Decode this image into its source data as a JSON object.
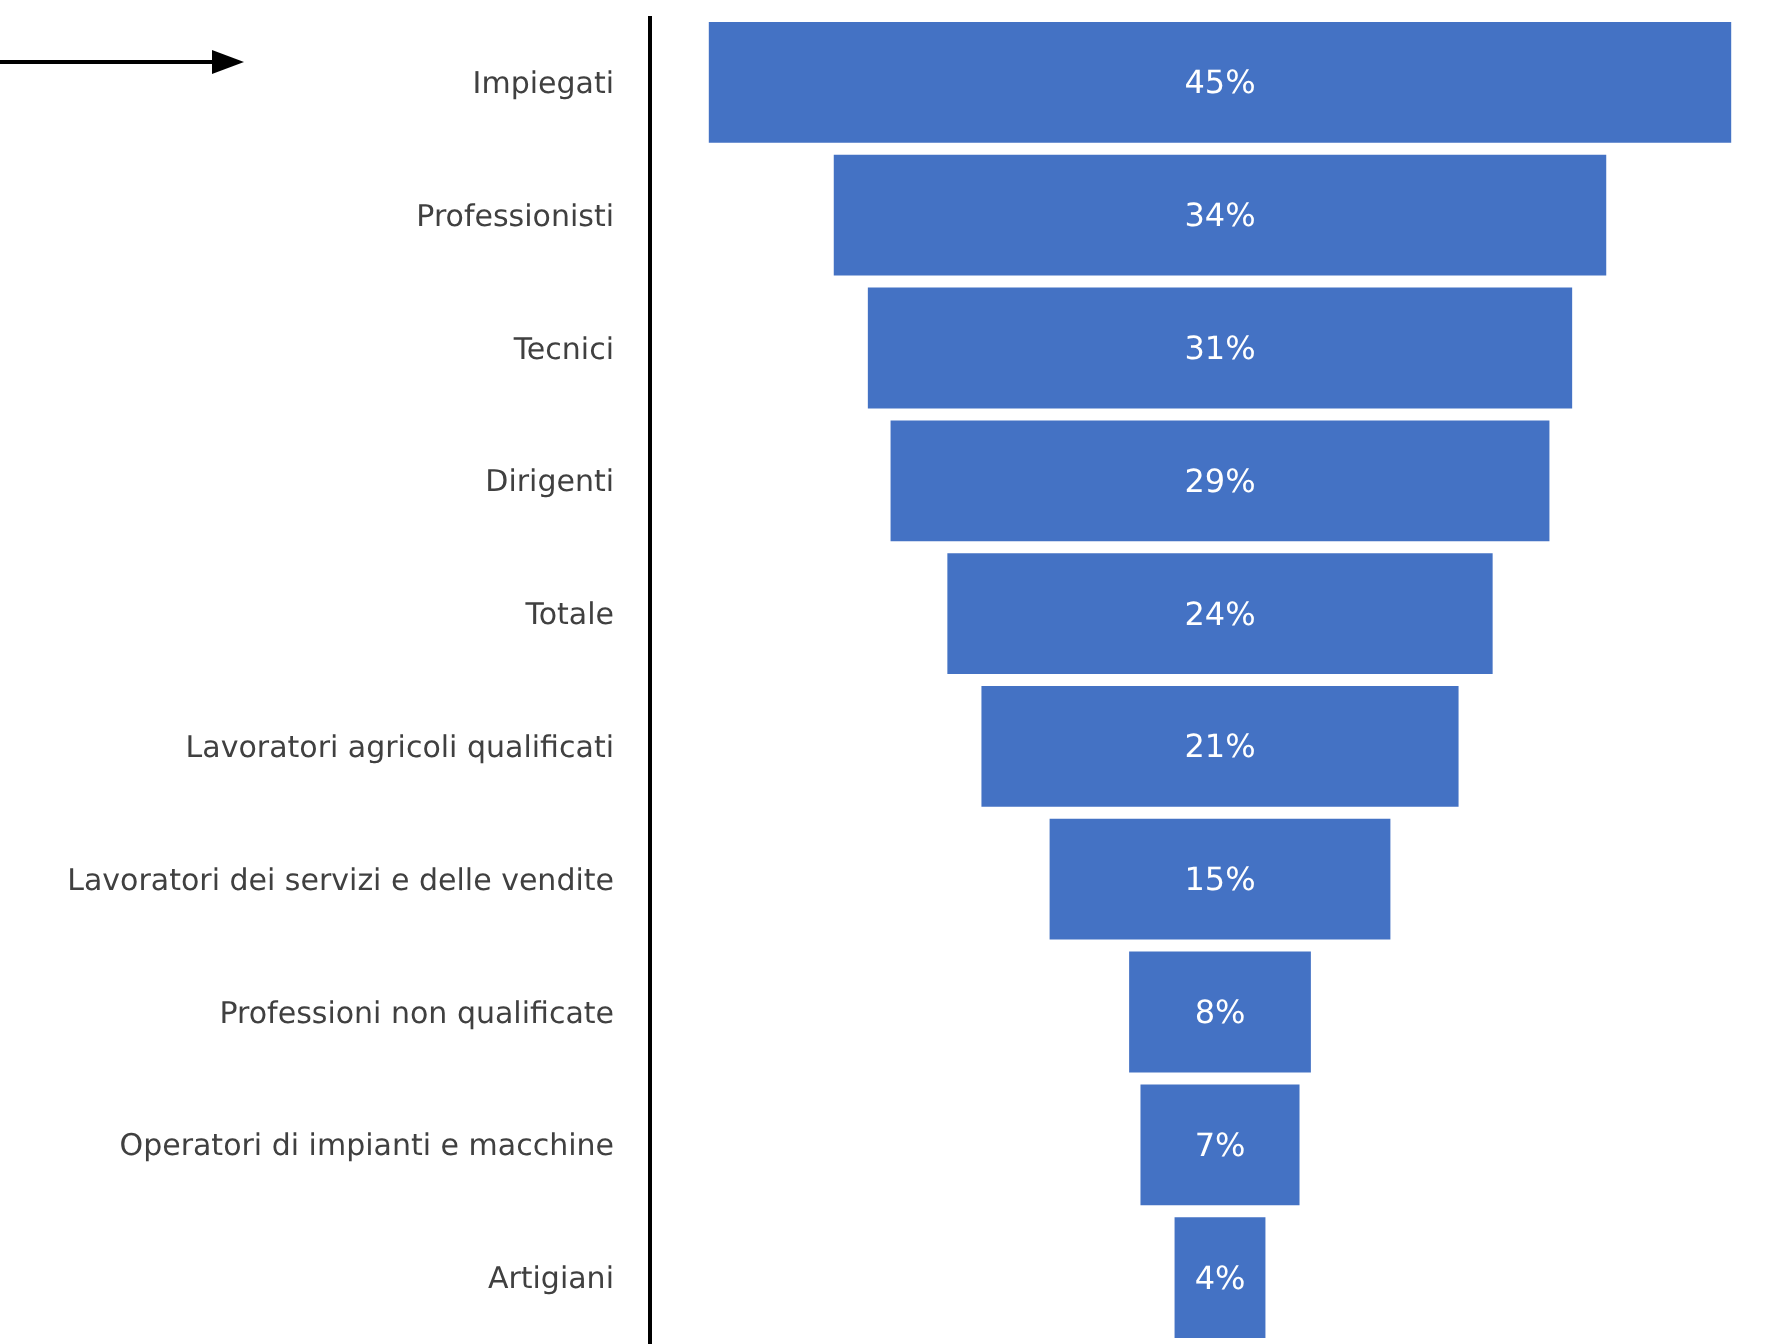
{
  "chart_data": {
    "type": "other",
    "categories": [
      "Impiegati",
      "Professionisti",
      "Tecnici",
      "Dirigenti",
      "Totale",
      "Lavoratori agricoli qualificati",
      "Lavoratori dei servizi e delle vendite",
      "Professioni non qualificate",
      "Operatori di impianti e macchine",
      "Artigiani"
    ],
    "values": [
      45,
      34,
      31,
      29,
      24,
      21,
      15,
      8,
      7,
      4
    ],
    "value_labels": [
      "45%",
      "34%",
      "31%",
      "29%",
      "24%",
      "21%",
      "15%",
      "8%",
      "7%",
      "4%"
    ],
    "color": "#4472c4"
  }
}
